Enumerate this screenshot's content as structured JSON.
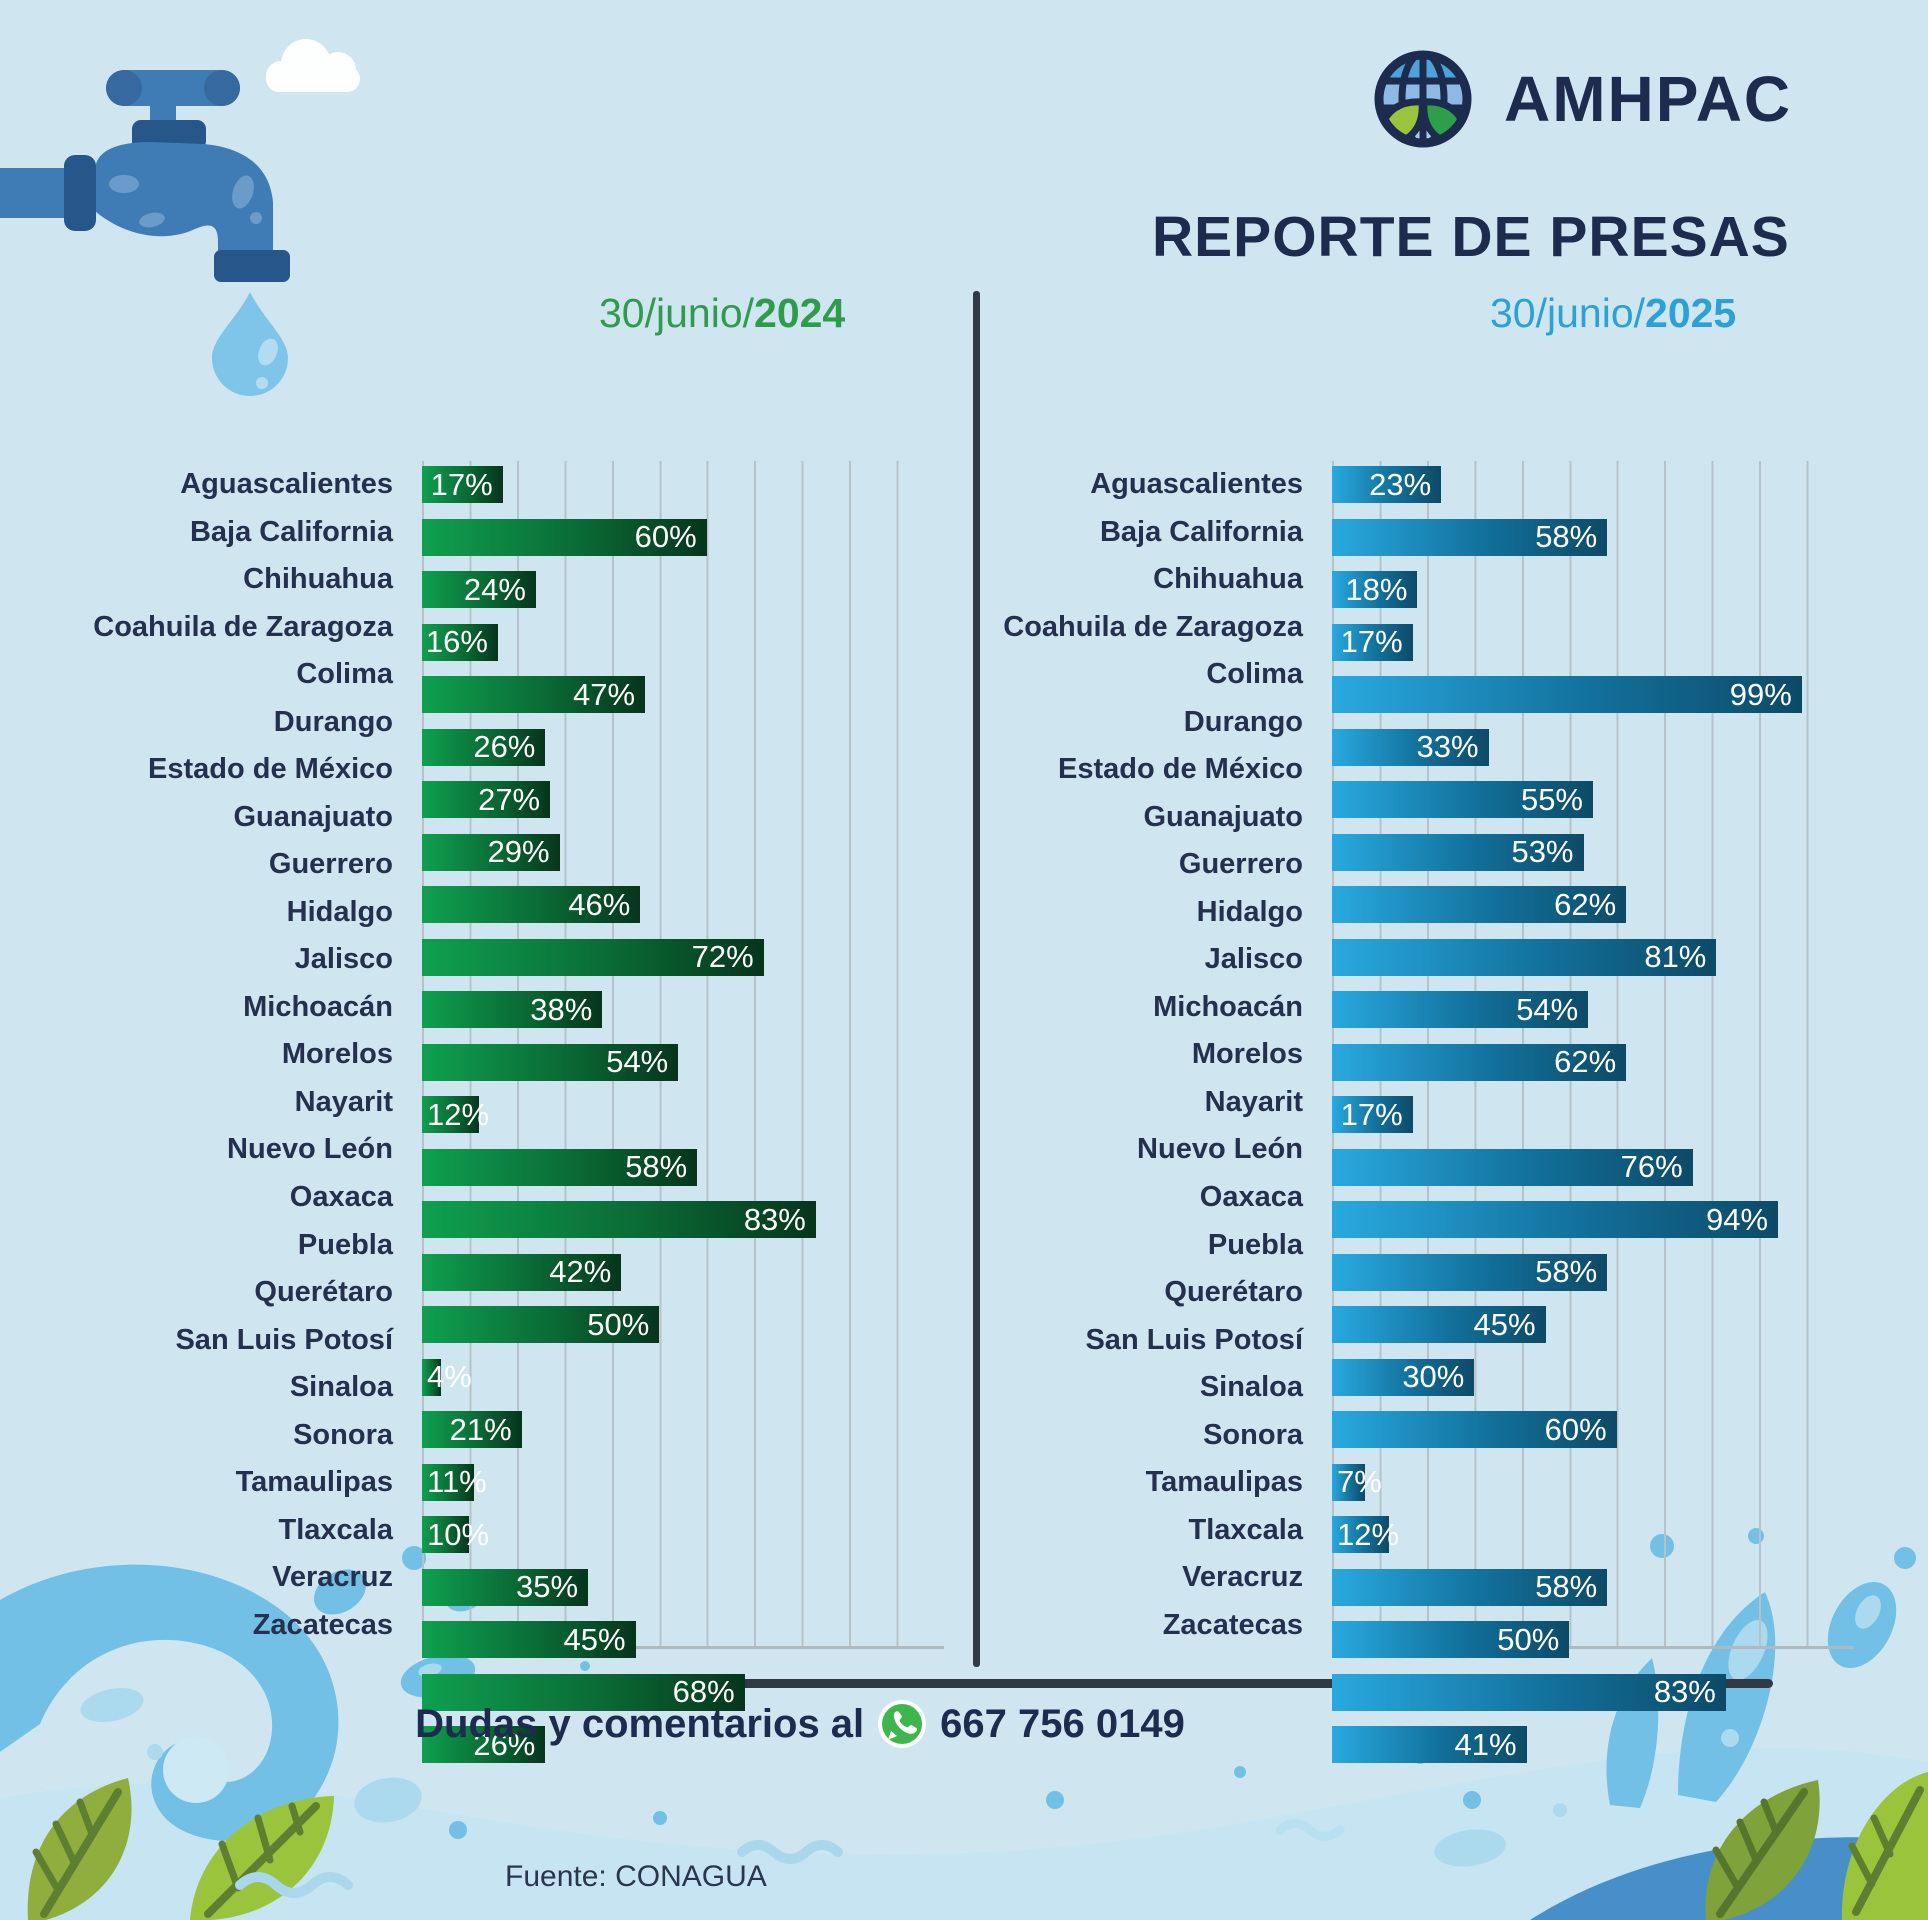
{
  "header": {
    "logo_text": "AMHPAC",
    "title": "REPORTE DE PRESAS"
  },
  "charts": [
    {
      "date_regular": "30/junio/",
      "date_bold": "2024",
      "accent_color": "#2f9b4d",
      "bar_gradient": [
        "#0fa04f",
        "#06351c"
      ],
      "axis_max": 110,
      "gridline_step_pct": 10,
      "value_suffix": "%",
      "rows": [
        {
          "label": "Aguascalientes",
          "value": 17
        },
        {
          "label": "Baja California",
          "value": 60
        },
        {
          "label": "Chihuahua",
          "value": 24
        },
        {
          "label": "Coahuila de Zaragoza",
          "value": 16
        },
        {
          "label": "Colima",
          "value": 47
        },
        {
          "label": "Durango",
          "value": 26
        },
        {
          "label": "Estado de México",
          "value": 27
        },
        {
          "label": "Guanajuato",
          "value": 29
        },
        {
          "label": "Guerrero",
          "value": 46
        },
        {
          "label": "Hidalgo",
          "value": 72
        },
        {
          "label": "Jalisco",
          "value": 38
        },
        {
          "label": "Michoacán",
          "value": 54
        },
        {
          "label": "Morelos",
          "value": 12
        },
        {
          "label": "Nayarit",
          "value": 58
        },
        {
          "label": "Nuevo León",
          "value": 83
        },
        {
          "label": "Oaxaca",
          "value": 42
        },
        {
          "label": "Puebla",
          "value": 50
        },
        {
          "label": "Querétaro",
          "value": 4
        },
        {
          "label": "San Luis Potosí",
          "value": 21
        },
        {
          "label": "Sinaloa",
          "value": 11
        },
        {
          "label": "Sonora",
          "value": 10
        },
        {
          "label": "Tamaulipas",
          "value": 35
        },
        {
          "label": "Tlaxcala",
          "value": 45
        },
        {
          "label": "Veracruz",
          "value": 68
        },
        {
          "label": "Zacatecas",
          "value": 26
        }
      ]
    },
    {
      "date_regular": "30/junio/",
      "date_bold": "2025",
      "accent_color": "#2ba1d6",
      "bar_gradient": [
        "#29a9e0",
        "#0d4a67"
      ],
      "axis_max": 110,
      "gridline_step_pct": 10,
      "value_suffix": "%",
      "rows": [
        {
          "label": "Aguascalientes",
          "value": 23
        },
        {
          "label": "Baja California",
          "value": 58
        },
        {
          "label": "Chihuahua",
          "value": 18
        },
        {
          "label": "Coahuila de Zaragoza",
          "value": 17
        },
        {
          "label": "Colima",
          "value": 99
        },
        {
          "label": "Durango",
          "value": 33
        },
        {
          "label": "Estado de México",
          "value": 55
        },
        {
          "label": "Guanajuato",
          "value": 53
        },
        {
          "label": "Guerrero",
          "value": 62
        },
        {
          "label": "Hidalgo",
          "value": 81
        },
        {
          "label": "Jalisco",
          "value": 54
        },
        {
          "label": "Michoacán",
          "value": 62
        },
        {
          "label": "Morelos",
          "value": 17
        },
        {
          "label": "Nayarit",
          "value": 76
        },
        {
          "label": "Nuevo León",
          "value": 94
        },
        {
          "label": "Oaxaca",
          "value": 58
        },
        {
          "label": "Puebla",
          "value": 45
        },
        {
          "label": "Querétaro",
          "value": 30
        },
        {
          "label": "San Luis Potosí",
          "value": 60
        },
        {
          "label": "Sinaloa",
          "value": 7
        },
        {
          "label": "Sonora",
          "value": 12
        },
        {
          "label": "Tamaulipas",
          "value": 58
        },
        {
          "label": "Tlaxcala",
          "value": 50
        },
        {
          "label": "Veracruz",
          "value": 83
        },
        {
          "label": "Zacatecas",
          "value": 41
        }
      ]
    }
  ],
  "chart_data": [
    {
      "type": "bar",
      "orientation": "horizontal",
      "title": "30/junio/2024",
      "categories": [
        "Aguascalientes",
        "Baja California",
        "Chihuahua",
        "Coahuila de Zaragoza",
        "Colima",
        "Durango",
        "Estado de México",
        "Guanajuato",
        "Guerrero",
        "Hidalgo",
        "Jalisco",
        "Michoacán",
        "Morelos",
        "Nayarit",
        "Nuevo León",
        "Oaxaca",
        "Puebla",
        "Querétaro",
        "San Luis Potosí",
        "Sinaloa",
        "Sonora",
        "Tamaulipas",
        "Tlaxcala",
        "Veracruz",
        "Zacatecas"
      ],
      "values": [
        17,
        60,
        24,
        16,
        47,
        26,
        27,
        29,
        46,
        72,
        38,
        54,
        12,
        58,
        83,
        42,
        50,
        4,
        21,
        11,
        10,
        35,
        45,
        68,
        26
      ],
      "value_unit": "%",
      "xlabel": "",
      "ylabel": "",
      "xlim": [
        0,
        110
      ],
      "grid": true,
      "gridline_interval": 10,
      "bar_color": "green gradient #0fa04f to #06351c",
      "data_labels": "white, inside bar end"
    },
    {
      "type": "bar",
      "orientation": "horizontal",
      "title": "30/junio/2025",
      "categories": [
        "Aguascalientes",
        "Baja California",
        "Chihuahua",
        "Coahuila de Zaragoza",
        "Colima",
        "Durango",
        "Estado de México",
        "Guanajuato",
        "Guerrero",
        "Hidalgo",
        "Jalisco",
        "Michoacán",
        "Morelos",
        "Nayarit",
        "Nuevo León",
        "Oaxaca",
        "Puebla",
        "Querétaro",
        "San Luis Potosí",
        "Sinaloa",
        "Sonora",
        "Tamaulipas",
        "Tlaxcala",
        "Veracruz",
        "Zacatecas"
      ],
      "values": [
        23,
        58,
        18,
        17,
        99,
        33,
        55,
        53,
        62,
        81,
        54,
        62,
        17,
        76,
        94,
        58,
        45,
        30,
        60,
        7,
        12,
        58,
        50,
        83,
        41
      ],
      "value_unit": "%",
      "xlabel": "",
      "ylabel": "",
      "xlim": [
        0,
        110
      ],
      "grid": true,
      "gridline_interval": 10,
      "bar_color": "blue gradient #29a9e0 to #0d4a67",
      "data_labels": "white, inside bar end"
    }
  ],
  "footer": {
    "contact_prefix": "Dudas y comentarios al",
    "phone": "667 756 0149",
    "source": "Fuente: CONAGUA"
  },
  "colors": {
    "background": "#cfe5f0",
    "navy_text": "#1d2b4f",
    "green_accent": "#2f9b4d",
    "blue_accent": "#2ba1d6",
    "divider": "#313a44",
    "gridline": "#b5c2c8",
    "whatsapp_green": "#3fb54e",
    "splash_blue": "#72c0e5",
    "wave_band": "#c6e4f1",
    "corner_wave_blue": "#478fc9",
    "leaf_light_green": "#9ac43c",
    "leaf_olive": "#8fae3e",
    "faucet_blue": "#3f7cb5",
    "faucet_dark_blue": "#27568b",
    "drop_blue": "#7ec5e9"
  }
}
